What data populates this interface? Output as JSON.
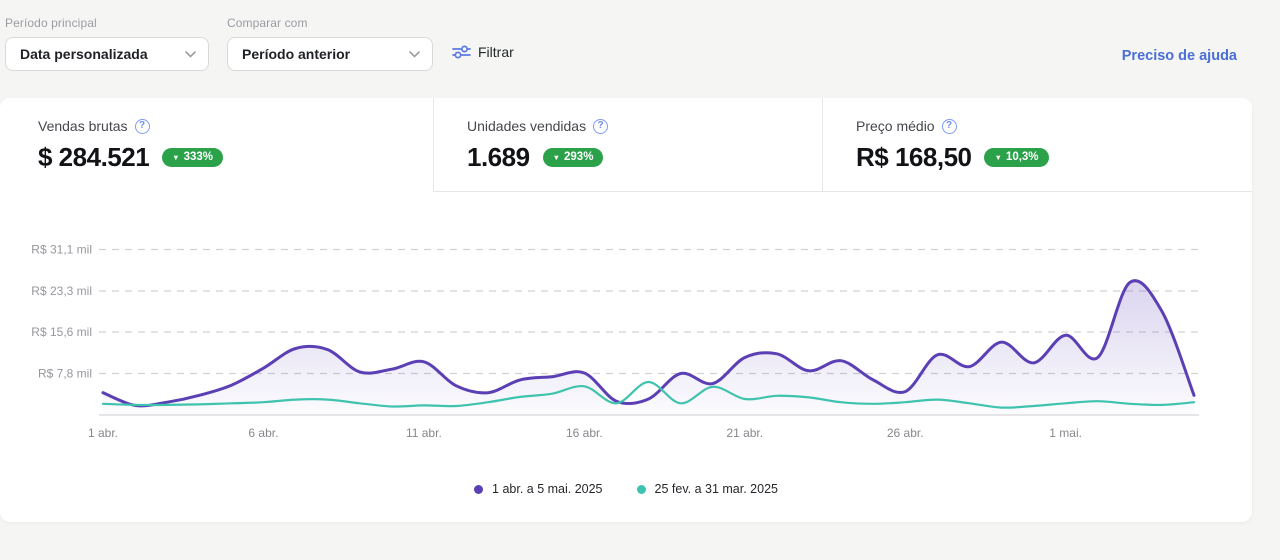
{
  "toolbar": {
    "primary_period_label": "Período principal",
    "primary_period_value": "Data personalizada",
    "compare_label": "Comparar com",
    "compare_value": "Período anterior",
    "filter_label": "Filtrar",
    "help_link": "Preciso de ajuda"
  },
  "icons": {
    "question": "?",
    "down_arrow": "▼"
  },
  "metrics": [
    {
      "label": "Vendas brutas",
      "value": "$ 284.521",
      "arrow": "▼",
      "delta": "333%"
    },
    {
      "label": "Unidades vendidas",
      "value": "1.689",
      "arrow": "▼",
      "delta": "293%"
    },
    {
      "label": "Preço médio",
      "value": "R$ 168,50",
      "arrow": "▼",
      "delta": "10,3%"
    }
  ],
  "colors": {
    "accent_blue": "#4a6fd6",
    "badge_green": "#2ba24a",
    "series_purple": "#5b3fb5",
    "series_teal": "#3fc3ae",
    "gridline": "#d2d2d6",
    "baseline": "#d8d8db"
  },
  "chart_data": {
    "type": "line",
    "title": "",
    "xlabel": "",
    "ylabel": "R$",
    "grid": "dashed-horizontal",
    "legend_position": "bottom-center",
    "ylim": [
      0,
      33000
    ],
    "y_ticks": [
      {
        "label": "R$ 7,8 mil",
        "value": 7800
      },
      {
        "label": "R$ 15,6 mil",
        "value": 15600
      },
      {
        "label": "R$ 23,3 mil",
        "value": 23300
      },
      {
        "label": "R$ 31,1 mil",
        "value": 31100
      }
    ],
    "x_tick_labels": [
      "1 abr.",
      "6 abr.",
      "11 abr.",
      "16 abr.",
      "21 abr.",
      "26 abr.",
      "1 mai."
    ],
    "x_tick_indices": [
      0,
      5,
      10,
      15,
      20,
      25,
      30
    ],
    "series": [
      {
        "name": "1 abr. a 5 mai. 2025",
        "color": "#5b3fb5",
        "fill": true,
        "values": [
          4200,
          1800,
          2400,
          3700,
          5600,
          8800,
          12500,
          12300,
          8100,
          8600,
          10000,
          5500,
          4200,
          6600,
          7200,
          7900,
          2600,
          3000,
          7800,
          5900,
          10800,
          11500,
          8300,
          10200,
          6600,
          4400,
          11300,
          9100,
          13700,
          9800,
          15000,
          10800,
          24900,
          19500,
          3700
        ]
      },
      {
        "name": "25 fev. a 31 mar. 2025",
        "color": "#3fc3ae",
        "fill": false,
        "values": [
          2100,
          1900,
          1900,
          2000,
          2200,
          2400,
          2900,
          2900,
          2200,
          1600,
          1800,
          1700,
          2400,
          3400,
          4000,
          5400,
          2200,
          6200,
          2200,
          5300,
          3000,
          3600,
          3300,
          2400,
          2100,
          2400,
          2900,
          2200,
          1400,
          1700,
          2200,
          2600,
          2100,
          1900,
          2400
        ]
      }
    ]
  }
}
